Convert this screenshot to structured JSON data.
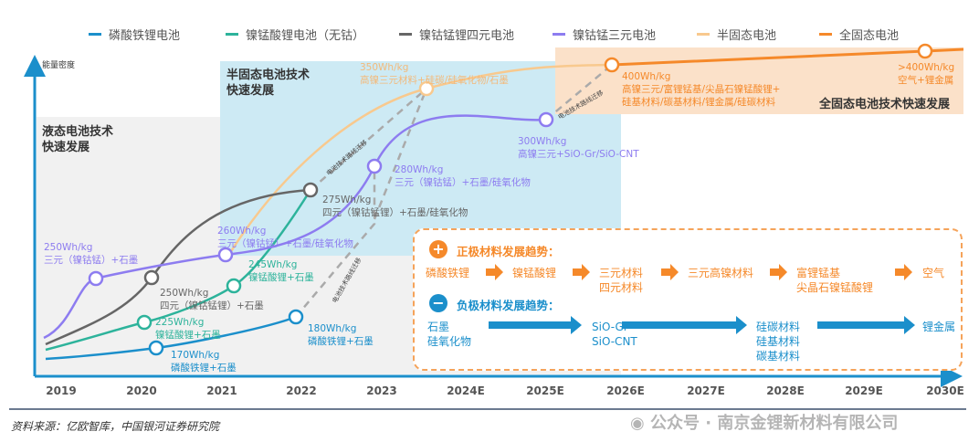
{
  "legend": [
    {
      "label": "磷酸铁锂电池",
      "color": "#1b8fcb"
    },
    {
      "label": "镍锰酸锂电池（无钴）",
      "color": "#2db39b"
    },
    {
      "label": "镍钴锰锂四元电池",
      "color": "#666666"
    },
    {
      "label": "镍钴锰三元电池",
      "color": "#8d7cf0"
    },
    {
      "label": "半固态电池",
      "color": "#f8c98e"
    },
    {
      "label": "全固态电池",
      "color": "#f5892a"
    }
  ],
  "y_axis_label": "能量密度",
  "x_axis_ticks": [
    "2019",
    "2020",
    "2021",
    "2022",
    "2023",
    "2024E",
    "2025E",
    "2026E",
    "2027E",
    "2028E",
    "2029E",
    "2030E"
  ],
  "regions": {
    "liquid": "液态电池技术\n快速发展",
    "semi_solid": "半固态电池技术\n快速发展",
    "all_solid": "全固态电池技术快速发展"
  },
  "migration_label": "电池技术路线迁移",
  "nodes": [
    {
      "label": "250Wh/kg\n三元（镍钴锰）+石墨",
      "series": "镍钴锰三元电池"
    },
    {
      "label": "250Wh/kg\n四元（镍钴锰锂）+石墨",
      "series": "镍钴锰锂四元电池"
    },
    {
      "label": "225Wh/kg\n镍锰酸锂+石墨",
      "series": "镍锰酸锂电池（无钴）"
    },
    {
      "label": "170Wh/kg\n磷酸铁锂+石墨",
      "series": "磷酸铁锂电池"
    },
    {
      "label": "260Wh/kg\n三元（镍钴锰）+石墨/硅氧化物",
      "series": "镍钴锰三元电池"
    },
    {
      "label": "245Wh/kg\n镍锰酸锂+石墨",
      "series": "镍锰酸锂电池（无钴）"
    },
    {
      "label": "275Wh/kg\n四元（镍钴锰锂）+石墨/硅氧化物",
      "series": "镍钴锰锂四元电池"
    },
    {
      "label": "180Wh/kg\n磷酸铁锂+石墨",
      "series": "磷酸铁锂电池"
    },
    {
      "label": "280Wh/kg\n三元（镍钴锰）+石墨/硅氧化物",
      "series": "镍钴锰三元电池"
    },
    {
      "label": "350Wh/kg\n高镍三元材料+硅碳/硅氧化物/石墨",
      "series": "半固态电池"
    },
    {
      "label": "300Wh/kg\n高镍三元+SiO-Gr/SiO-CNT",
      "series": "镍钴锰三元电池"
    },
    {
      "label": "400Wh/kg\n高镍三元/富锂锰基/尖晶石镍锰酸锂+\n硅基材料/碳基材料/锂金属/硅碳材料",
      "series": "全固态电池"
    },
    {
      "label": ">400Wh/kg\n空气+锂金属",
      "series": "全固态电池"
    }
  ],
  "trends": {
    "cathode": {
      "icon": "plus-icon",
      "title": "正极材料发展趋势：",
      "items": [
        "磷酸铁锂",
        "镍锰酸锂",
        "三元材料\n四元材料",
        "三元高镍材料",
        "富锂锰基\n尖晶石镍锰酸锂",
        "空气"
      ]
    },
    "anode": {
      "icon": "minus-icon",
      "title": "负极材料发展趋势：",
      "items": [
        "石墨\n硅氧化物",
        "SiO-Gr\nSiO-CNT",
        "硅碳材料\n硅基材料\n碳基材料",
        "锂金属"
      ]
    }
  },
  "source": "资料来源：亿欧智库，中国银河证券研究院",
  "watermark": "公众号 · 南京金锂新材料有限公司"
}
